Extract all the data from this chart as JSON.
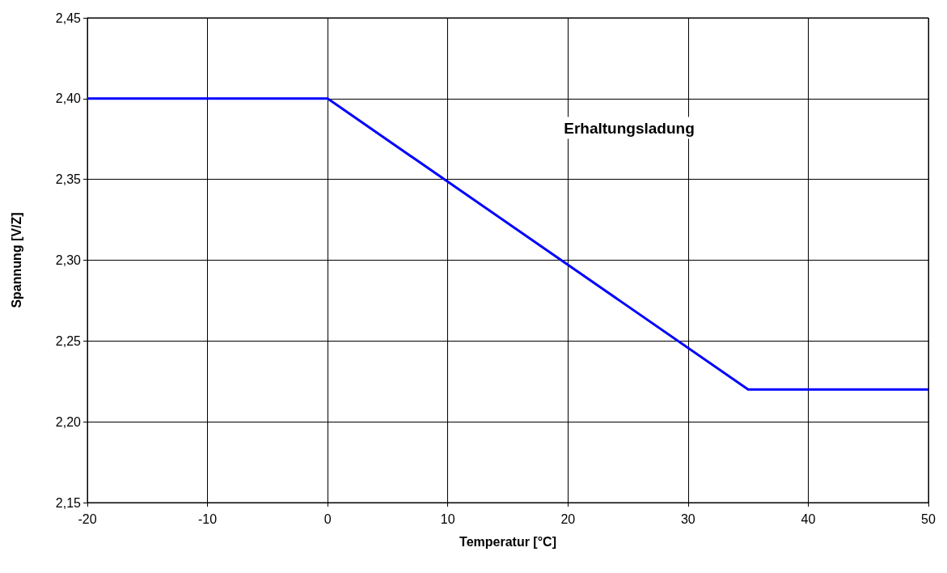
{
  "chart_data": {
    "type": "line",
    "xlabel": "Temperatur [°C]",
    "ylabel": "Spannung [V/Z]",
    "x": [
      -20,
      0,
      35,
      50
    ],
    "series": [
      {
        "color": "#0000ff",
        "values": [
          2.4,
          2.4,
          2.22,
          2.22
        ]
      }
    ],
    "annotations": [
      "Erhaltungsladung"
    ],
    "xlim": [
      -20,
      50
    ],
    "xticks": [
      -20,
      -10,
      0,
      10,
      20,
      30,
      40,
      50
    ],
    "ylim": [
      2.15,
      2.45
    ],
    "yticks": [
      {
        "value": 2.15,
        "label": "2,15"
      },
      {
        "value": 2.2,
        "label": "2,20"
      },
      {
        "value": 2.25,
        "label": "2,25"
      },
      {
        "value": 2.3,
        "label": "2,30"
      },
      {
        "value": 2.35,
        "label": "2,35"
      },
      {
        "value": 2.4,
        "label": "2,40"
      },
      {
        "value": 2.45,
        "label": "2,45"
      }
    ],
    "grid": true,
    "marker": "none",
    "line_style": "solid"
  }
}
